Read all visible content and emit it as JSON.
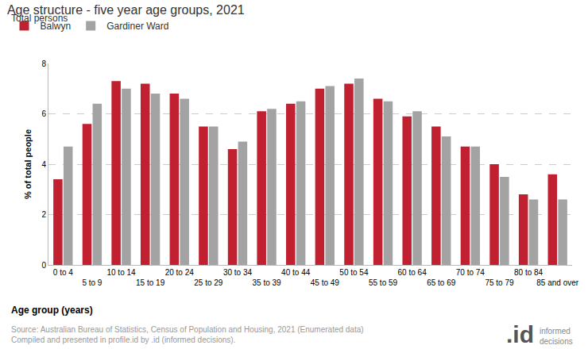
{
  "chart_data": {
    "type": "bar",
    "title": "Age structure - five year age groups, 2021",
    "subtitle": "Total persons",
    "x_label": "Age group (years)",
    "y_label": "% of total people",
    "categories": [
      "0 to 4",
      "5 to 9",
      "10 to 14",
      "15 to 19",
      "20 to 24",
      "25 to 29",
      "30 to 34",
      "35 to 39",
      "40 to 44",
      "45 to 49",
      "50 to 54",
      "55 to 59",
      "60 to 64",
      "65 to 69",
      "70 to 74",
      "75 to 79",
      "80 to 84",
      "85 and over"
    ],
    "series": [
      {
        "name": "Balwyn",
        "color": "#c0202f",
        "values": [
          3.4,
          5.6,
          7.3,
          7.2,
          6.8,
          5.5,
          4.6,
          6.1,
          6.4,
          7.0,
          7.2,
          6.6,
          5.9,
          5.5,
          4.7,
          4.0,
          2.8,
          3.6
        ]
      },
      {
        "name": "Gardiner Ward",
        "color": "#a3a3a3",
        "values": [
          4.7,
          6.4,
          7.0,
          6.8,
          6.6,
          5.5,
          4.9,
          6.2,
          6.5,
          7.1,
          7.4,
          6.5,
          6.1,
          5.1,
          4.7,
          3.5,
          2.6,
          2.6
        ]
      }
    ],
    "ylim": [
      0,
      8
    ],
    "yticks": [
      0,
      2,
      4,
      6,
      8
    ],
    "grid": true,
    "legend": "top-left",
    "source": [
      "Source: Australian Bureau of Statistics, Census of Population and Housing, 2021 (Enumerated data)",
      "Compiled and presented in profile.id by .id (informed decisions)."
    ],
    "logo": {
      "mark": ".id",
      "text": "informed decisions"
    }
  }
}
